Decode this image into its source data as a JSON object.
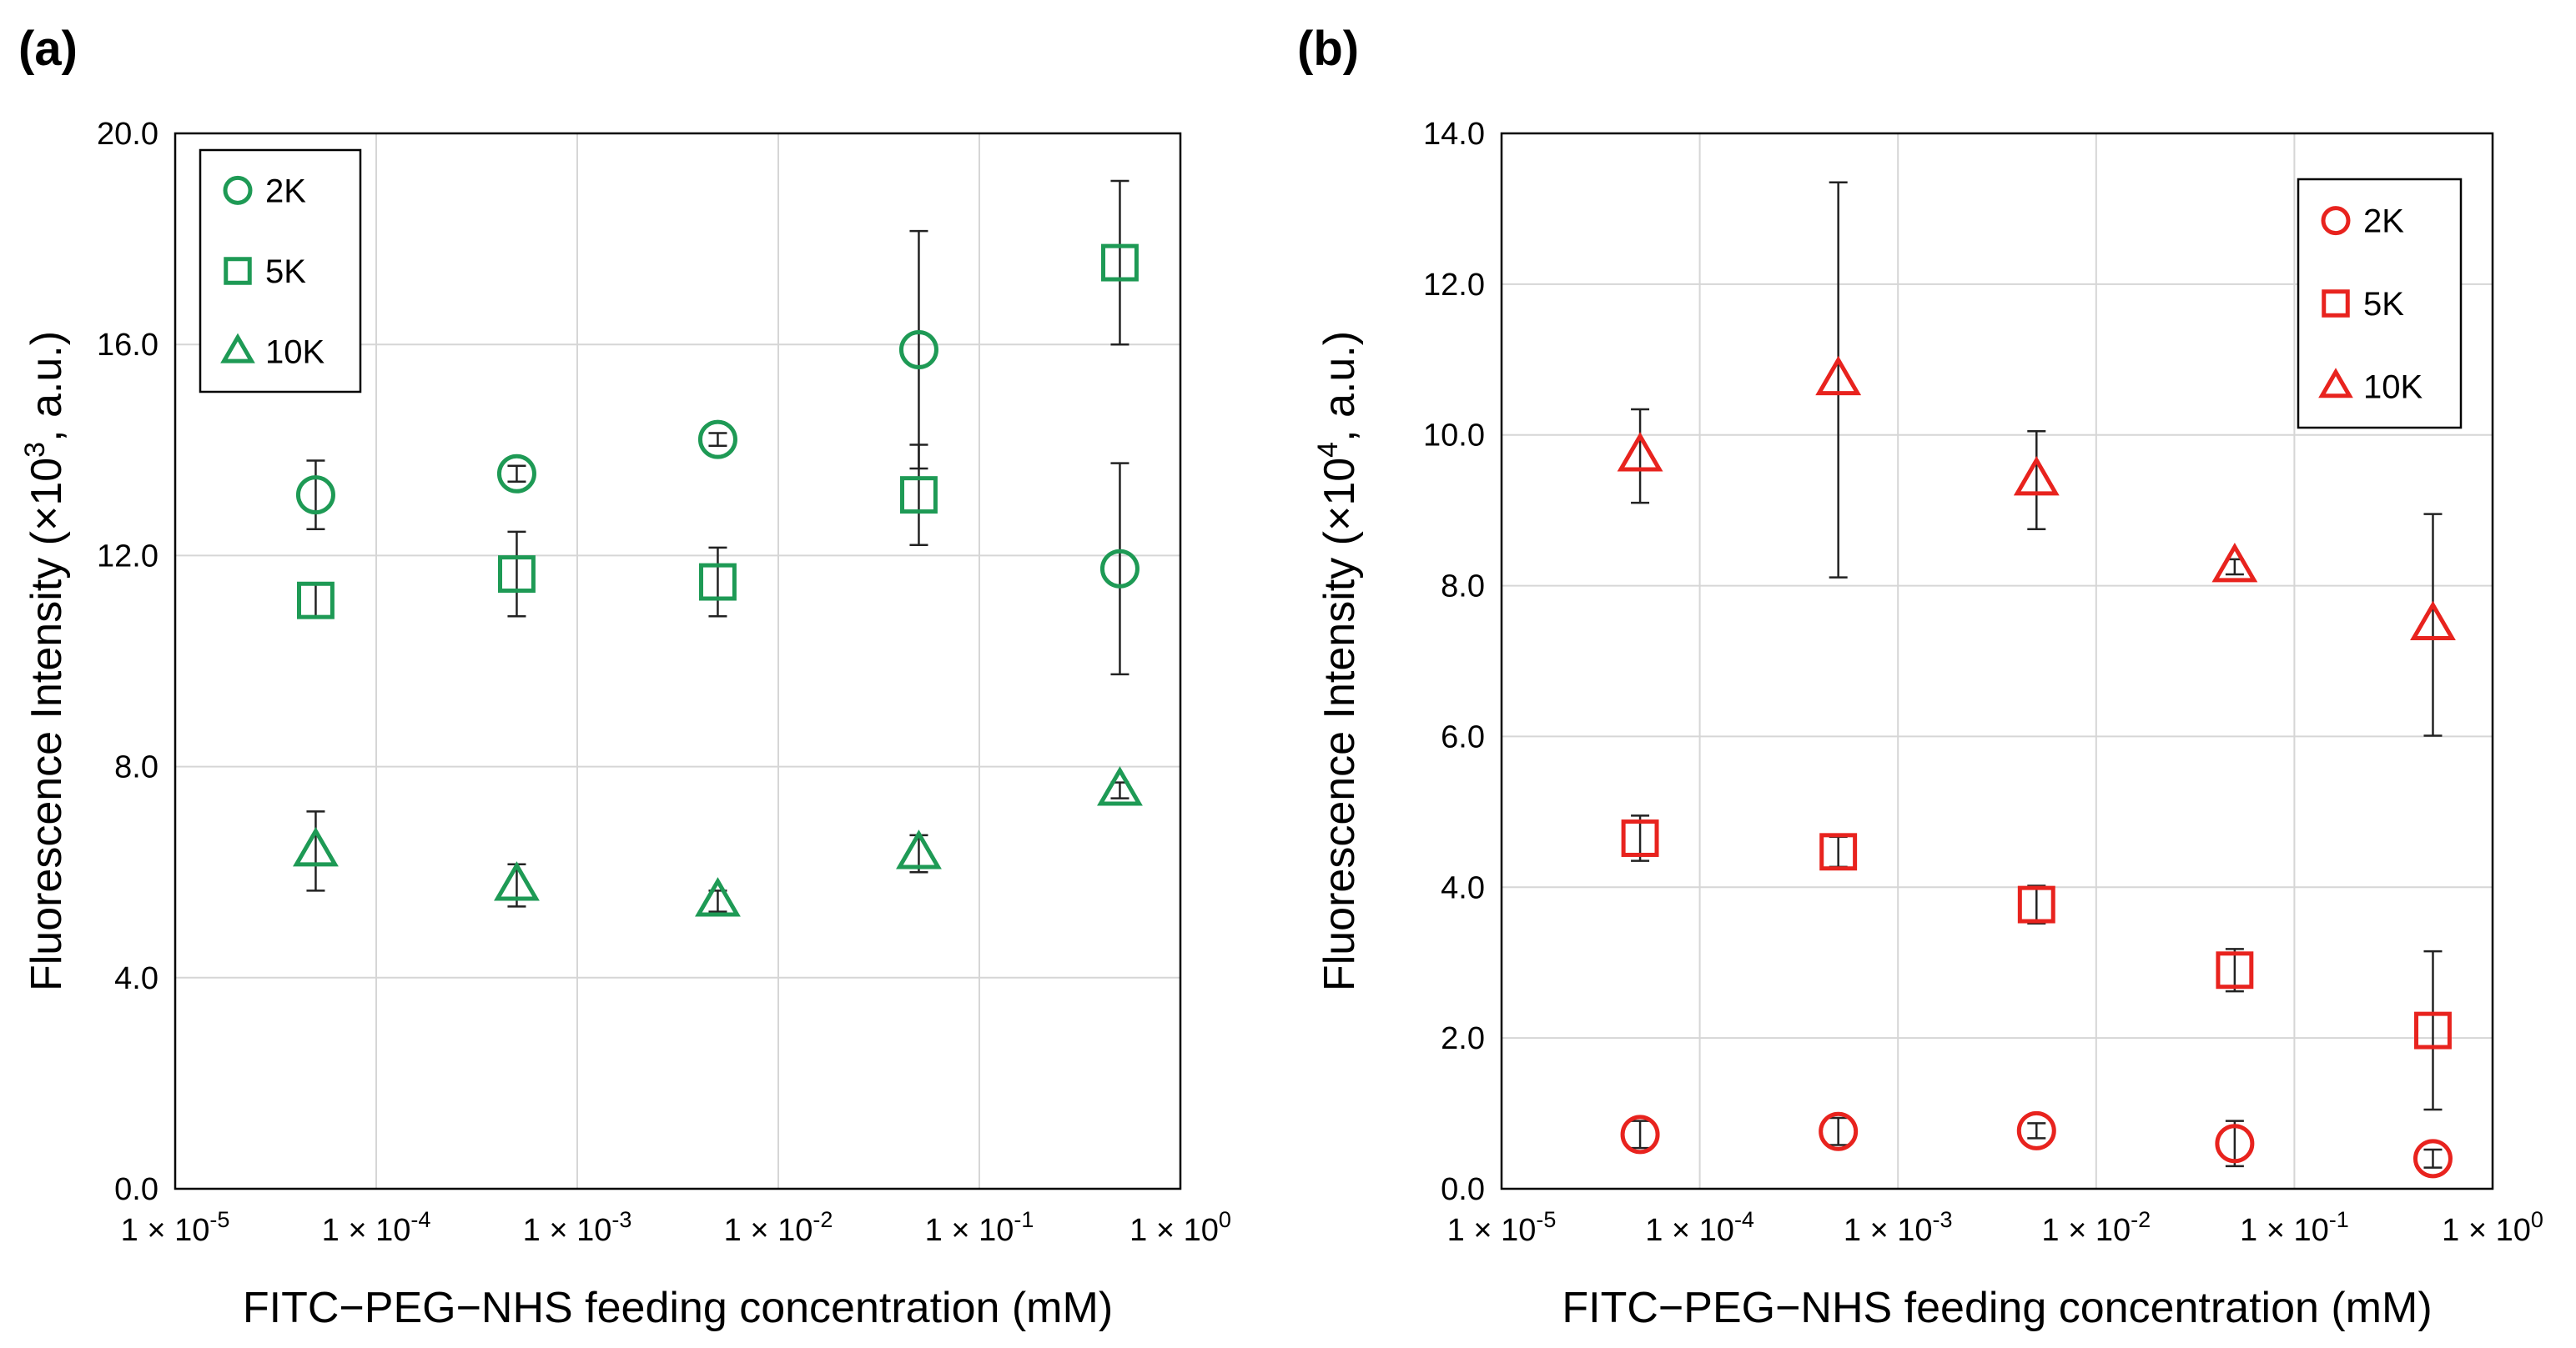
{
  "chart_data": [
    {
      "type": "scatter",
      "panel": "(a)",
      "ylabel_main": "Fluorescence Intensity (×10",
      "ylabel_exp": "3",
      "ylabel_tail": ", a.u.)",
      "xlabel": "FITC−PEG−NHS feeding concentration (mM)",
      "xscale": "log",
      "xlim": [
        1e-05,
        1
      ],
      "ylim": [
        0,
        20
      ],
      "yticks": [
        0,
        4,
        8,
        12,
        16,
        20
      ],
      "yticklabels": [
        "0.0",
        "4.0",
        "8.0",
        "12.0",
        "16.0",
        "20.0"
      ],
      "xticks": [
        1e-05,
        0.0001,
        0.001,
        0.01,
        0.1,
        1
      ],
      "xticklabels": [
        {
          "base": "1 × 10",
          "exp": "-5"
        },
        {
          "base": "1 × 10",
          "exp": "-4"
        },
        {
          "base": "1 × 10",
          "exp": "-3"
        },
        {
          "base": "1 × 10",
          "exp": "-2"
        },
        {
          "base": "1 × 10",
          "exp": "-1"
        },
        {
          "base": "1 × 10",
          "exp": "0"
        }
      ],
      "grid": true,
      "legend_position": "top-left",
      "color": "#1e9a55",
      "x": [
        5e-05,
        0.0005,
        0.005,
        0.05,
        0.5
      ],
      "series": [
        {
          "name": "2K",
          "marker": "circle",
          "values": [
            13.15,
            13.55,
            14.2,
            15.9,
            11.75
          ],
          "err": [
            0.65,
            0.15,
            0.12,
            2.25,
            2.0
          ]
        },
        {
          "name": "5K",
          "marker": "square",
          "values": [
            11.15,
            11.65,
            11.5,
            13.15,
            17.55
          ],
          "err": [
            0.3,
            0.8,
            0.65,
            0.95,
            1.55
          ]
        },
        {
          "name": "10K",
          "marker": "triangle",
          "values": [
            6.4,
            5.75,
            5.45,
            6.35,
            7.55
          ],
          "err": [
            0.75,
            0.4,
            0.2,
            0.35,
            0.15
          ]
        }
      ]
    },
    {
      "type": "scatter",
      "panel": "(b)",
      "ylabel_main": "Fluorescence Intensity (×10",
      "ylabel_exp": "4",
      "ylabel_tail": ", a.u.)",
      "xlabel": "FITC−PEG−NHS feeding concentration (mM)",
      "xscale": "log",
      "xlim": [
        1e-05,
        1
      ],
      "ylim": [
        0,
        14
      ],
      "yticks": [
        0,
        2,
        4,
        6,
        8,
        10,
        12,
        14
      ],
      "yticklabels": [
        "0.0",
        "2.0",
        "4.0",
        "6.0",
        "8.0",
        "10.0",
        "12.0",
        "14.0"
      ],
      "xticks": [
        1e-05,
        0.0001,
        0.001,
        0.01,
        0.1,
        1
      ],
      "xticklabels": [
        {
          "base": "1 × 10",
          "exp": "-5"
        },
        {
          "base": "1 × 10",
          "exp": "-4"
        },
        {
          "base": "1 × 10",
          "exp": "-3"
        },
        {
          "base": "1 × 10",
          "exp": "-2"
        },
        {
          "base": "1 × 10",
          "exp": "-1"
        },
        {
          "base": "1 × 10",
          "exp": "0"
        }
      ],
      "grid": true,
      "legend_position": "top-right",
      "color": "#e8231e",
      "x": [
        5e-05,
        0.0005,
        0.005,
        0.05,
        0.5
      ],
      "series": [
        {
          "name": "2K",
          "marker": "circle",
          "values": [
            0.72,
            0.76,
            0.77,
            0.6,
            0.4
          ],
          "err": [
            0.18,
            0.18,
            0.1,
            0.3,
            0.12
          ]
        },
        {
          "name": "5K",
          "marker": "square",
          "values": [
            4.65,
            4.47,
            3.77,
            2.9,
            2.1
          ],
          "err": [
            0.3,
            0.2,
            0.25,
            0.28,
            1.05
          ]
        },
        {
          "name": "10K",
          "marker": "triangle",
          "values": [
            9.72,
            10.73,
            9.4,
            8.25,
            7.48
          ],
          "err": [
            0.62,
            2.62,
            0.65,
            0.1,
            1.47
          ]
        }
      ]
    }
  ]
}
